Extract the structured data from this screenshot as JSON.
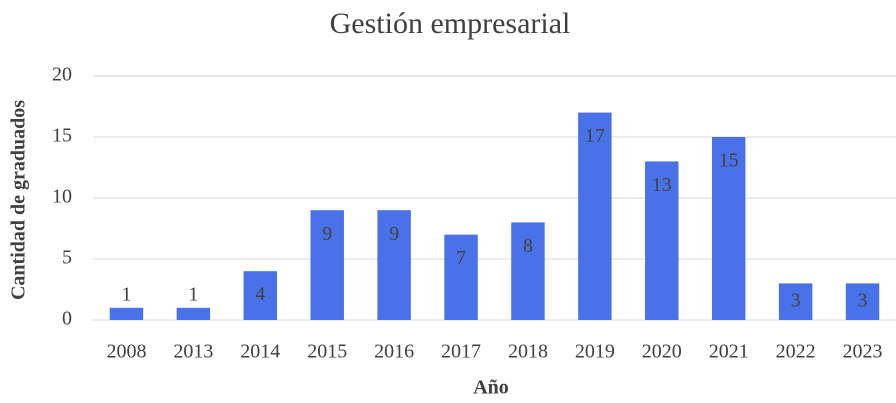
{
  "chart_data": {
    "type": "bar",
    "title": "Gestión empresarial",
    "categories": [
      "2008",
      "2013",
      "2014",
      "2015",
      "2016",
      "2017",
      "2018",
      "2019",
      "2020",
      "2021",
      "2022",
      "2023"
    ],
    "values": [
      1,
      1,
      4,
      9,
      9,
      7,
      8,
      17,
      13,
      15,
      3,
      3
    ],
    "color": "#4a72e8",
    "x_label": "Año",
    "y_label": "Cantidad de graduados",
    "ylim": [
      0,
      20
    ],
    "yticks": [
      0,
      5,
      10,
      15,
      20
    ],
    "grid": true
  }
}
